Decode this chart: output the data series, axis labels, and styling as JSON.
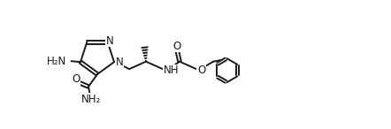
{
  "background": "#ffffff",
  "line_color": "#1a1a1a",
  "line_width": 1.4,
  "font_size": 8.5,
  "figsize": [
    4.42,
    1.46
  ],
  "dpi": 100,
  "xlim": [
    0,
    44.2
  ],
  "ylim": [
    0,
    14.6
  ]
}
